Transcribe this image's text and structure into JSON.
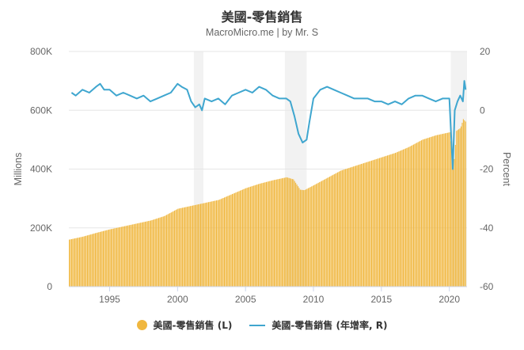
{
  "header": {
    "title": "美國-零售銷售",
    "subtitle": "MacroMicro.me | by Mr. S"
  },
  "legend": [
    {
      "label": "美國-零售銷售 (L)",
      "marker": "circle",
      "color": "#f0b73f"
    },
    {
      "label": "美國-零售銷售 (年增率, R)",
      "marker": "line",
      "color": "#3fa6cf"
    }
  ],
  "chart_data": {
    "type": "bar+line",
    "title": "美國-零售銷售",
    "subtitle": "MacroMicro.me | by Mr. S",
    "xlabel": "",
    "x_ticks": [
      "1995",
      "2000",
      "2005",
      "2010",
      "2015",
      "2020"
    ],
    "x_range": [
      1992.0,
      2021.3
    ],
    "left_axis": {
      "label": "Millions",
      "ticks": [
        "0",
        "200K",
        "400K",
        "600K",
        "800K"
      ],
      "ylim": [
        0,
        800000
      ]
    },
    "right_axis": {
      "label": "Percent",
      "ticks": [
        "-60",
        "-40",
        "-20",
        "0",
        "20"
      ],
      "ylim": [
        -60,
        20
      ]
    },
    "grid": true,
    "legend_position": "bottom",
    "recession_bands": [
      [
        2001.2,
        2001.9
      ],
      [
        2007.9,
        2009.5
      ],
      [
        2020.1,
        2021.3
      ]
    ],
    "series": [
      {
        "name": "美國-零售銷售 (L)",
        "type": "bar",
        "axis": "left",
        "color": "#f0b73f",
        "x": [
          1992.0,
          1993.0,
          1994.0,
          1995.0,
          1996.0,
          1997.0,
          1998.0,
          1999.0,
          2000.0,
          2001.0,
          2002.0,
          2003.0,
          2004.0,
          2005.0,
          2006.0,
          2007.0,
          2008.0,
          2008.5,
          2009.0,
          2009.3,
          2010.0,
          2011.0,
          2012.0,
          2013.0,
          2014.0,
          2015.0,
          2016.0,
          2017.0,
          2018.0,
          2019.0,
          2020.0,
          2020.3,
          2020.5,
          2020.8,
          2021.0,
          2021.2
        ],
        "values": [
          160000,
          170000,
          183000,
          195000,
          205000,
          215000,
          225000,
          240000,
          265000,
          275000,
          285000,
          295000,
          315000,
          335000,
          350000,
          362000,
          372000,
          365000,
          330000,
          328000,
          345000,
          370000,
          395000,
          410000,
          425000,
          440000,
          455000,
          475000,
          500000,
          515000,
          525000,
          415000,
          530000,
          540000,
          570000,
          560000
        ]
      },
      {
        "name": "美國-零售銷售 (年增率, R)",
        "type": "line",
        "axis": "right",
        "color": "#3fa6cf",
        "x": [
          1992.2,
          1992.5,
          1993.0,
          1993.5,
          1994.0,
          1994.3,
          1994.6,
          1995.0,
          1995.5,
          1996.0,
          1996.5,
          1997.0,
          1997.5,
          1998.0,
          1998.5,
          1999.0,
          1999.5,
          2000.0,
          2000.3,
          2000.7,
          2001.0,
          2001.3,
          2001.6,
          2001.8,
          2002.0,
          2002.5,
          2003.0,
          2003.5,
          2004.0,
          2004.5,
          2005.0,
          2005.5,
          2006.0,
          2006.5,
          2007.0,
          2007.5,
          2008.0,
          2008.3,
          2008.6,
          2008.9,
          2009.2,
          2009.5,
          2009.7,
          2010.0,
          2010.5,
          2011.0,
          2011.5,
          2012.0,
          2012.5,
          2013.0,
          2013.5,
          2014.0,
          2014.5,
          2015.0,
          2015.5,
          2016.0,
          2016.5,
          2017.0,
          2017.5,
          2018.0,
          2018.5,
          2019.0,
          2019.5,
          2020.0,
          2020.25,
          2020.4,
          2020.6,
          2020.8,
          2021.0,
          2021.1,
          2021.2
        ],
        "values": [
          6,
          5,
          7,
          6,
          8,
          9,
          7,
          7,
          5,
          6,
          5,
          4,
          5,
          3,
          4,
          5,
          6,
          9,
          8,
          7,
          3,
          1,
          2,
          0,
          4,
          3,
          4,
          2,
          5,
          6,
          7,
          6,
          8,
          7,
          5,
          4,
          4,
          3,
          -2,
          -8,
          -11,
          -10,
          -4,
          4,
          7,
          8,
          7,
          6,
          5,
          4,
          4,
          4,
          3,
          3,
          2,
          3,
          2,
          4,
          5,
          5,
          4,
          3,
          4,
          4,
          -20,
          0,
          3,
          5,
          3,
          10,
          7
        ]
      }
    ]
  }
}
